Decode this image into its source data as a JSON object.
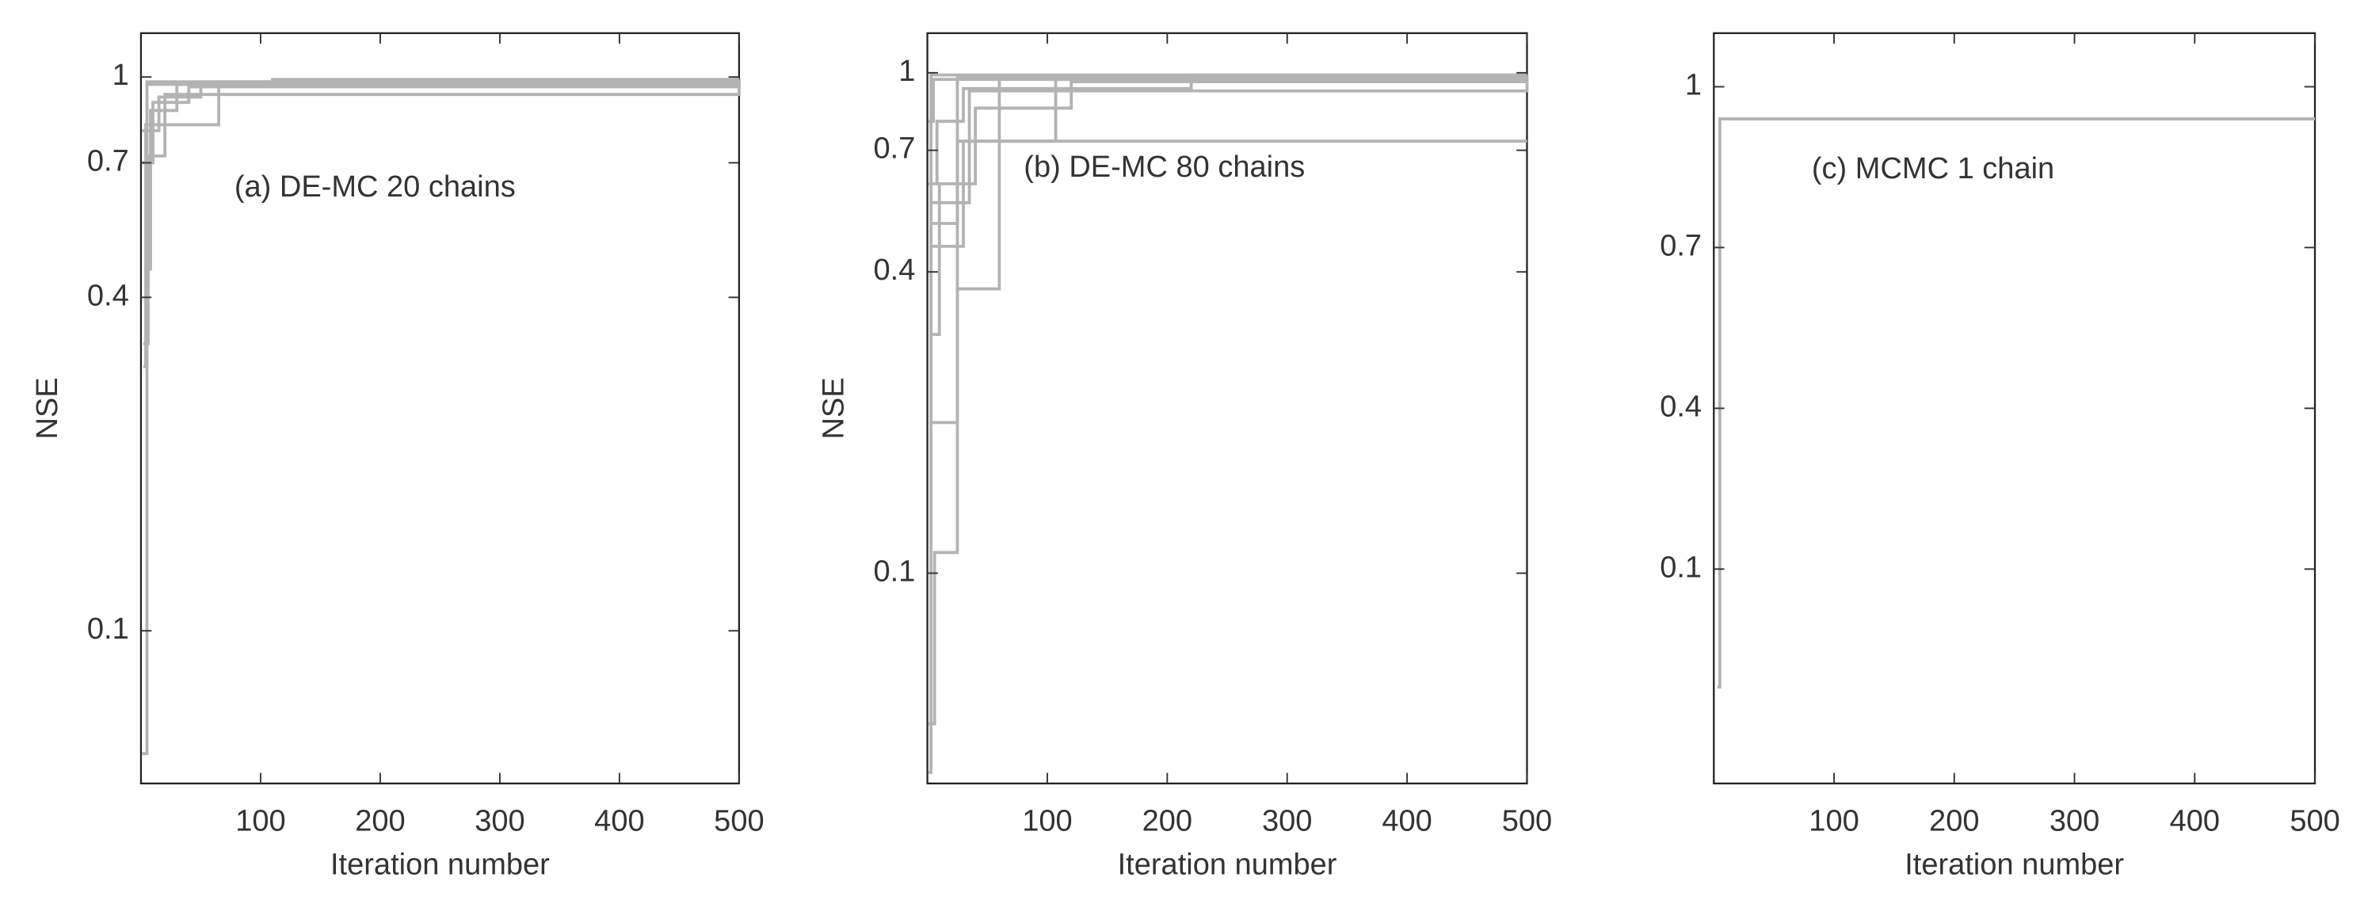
{
  "chart_data": [
    {
      "type": "line",
      "drawstyle": "steps-post",
      "annotation": "(a) DE-MC 20 chains",
      "xlabel": "Iteration number",
      "ylabel": "NSE",
      "xlim": [
        0,
        500
      ],
      "xticks": [
        100,
        200,
        300,
        400,
        500
      ],
      "yscale": "log",
      "ylim": [
        0.053,
        1.2
      ],
      "yticks": [
        0.1,
        0.4,
        0.7,
        1
      ],
      "series": [
        {
          "color": "#b3b3b3",
          "x": [
            1,
            5,
            110,
            500
          ],
          "values": [
            0.06,
            0.98,
            0.99,
            0.99
          ]
        },
        {
          "color": "#b3b3b3",
          "x": [
            2,
            4,
            65,
            500
          ],
          "values": [
            0.3,
            0.82,
            0.98,
            0.98
          ]
        },
        {
          "color": "#b3b3b3",
          "x": [
            3,
            8,
            30,
            500
          ],
          "values": [
            0.45,
            0.87,
            0.97,
            0.97
          ]
        },
        {
          "color": "#b3b3b3",
          "x": [
            2,
            6,
            20,
            500
          ],
          "values": [
            0.33,
            0.72,
            0.93,
            0.99
          ]
        },
        {
          "color": "#b3b3b3",
          "x": [
            1,
            10,
            40,
            500
          ],
          "values": [
            0.7,
            0.9,
            0.96,
            0.99
          ]
        },
        {
          "color": "#b3b3b3",
          "x": [
            1,
            15,
            50,
            500
          ],
          "values": [
            0.8,
            0.92,
            0.98,
            0.99
          ]
        },
        {
          "color": "#b3b3b3",
          "x": [
            4,
            500
          ],
          "values": [
            0.97,
            0.99
          ]
        }
      ]
    },
    {
      "type": "line",
      "drawstyle": "steps-post",
      "annotation": "(b) DE-MC 80 chains",
      "xlabel": "Iteration number",
      "ylabel": "NSE",
      "xlim": [
        0,
        500
      ],
      "xticks": [
        100,
        200,
        300,
        400,
        500
      ],
      "yscale": "log",
      "ylim": [
        0.038,
        1.2
      ],
      "yticks": [
        0.1,
        0.4,
        0.7,
        1
      ],
      "series": [
        {
          "color": "#b3b3b3",
          "x": [
            1,
            3,
            500
          ],
          "values": [
            0.04,
            0.99,
            0.99
          ]
        },
        {
          "color": "#b3b3b3",
          "x": [
            1,
            6,
            25,
            500
          ],
          "values": [
            0.05,
            0.11,
            0.98,
            0.98
          ]
        },
        {
          "color": "#b3b3b3",
          "x": [
            2,
            25,
            60,
            500
          ],
          "values": [
            0.2,
            0.37,
            0.98,
            0.98
          ]
        },
        {
          "color": "#b3b3b3",
          "x": [
            3,
            25,
            500
          ],
          "values": [
            0.5,
            0.73,
            0.73
          ]
        },
        {
          "color": "#b3b3b3",
          "x": [
            3,
            30,
            107,
            500
          ],
          "values": [
            0.45,
            0.73,
            0.97,
            0.97
          ]
        },
        {
          "color": "#b3b3b3",
          "x": [
            2,
            10,
            40,
            120,
            500
          ],
          "values": [
            0.3,
            0.6,
            0.85,
            0.96,
            0.96
          ]
        },
        {
          "color": "#b3b3b3",
          "x": [
            1,
            8,
            30,
            220,
            500
          ],
          "values": [
            0.6,
            0.8,
            0.93,
            0.99,
            0.99
          ]
        },
        {
          "color": "#b3b3b3",
          "x": [
            1,
            5,
            500
          ],
          "values": [
            0.8,
            0.97,
            0.97
          ]
        },
        {
          "color": "#b3b3b3",
          "x": [
            4,
            35,
            500
          ],
          "values": [
            0.55,
            0.92,
            0.99
          ]
        }
      ]
    },
    {
      "type": "line",
      "drawstyle": "steps-post",
      "annotation": "(c) MCMC 1 chain",
      "xlabel": "Iteration number",
      "xlim": [
        0,
        500
      ],
      "xticks": [
        100,
        200,
        300,
        400,
        500
      ],
      "yscale": "linear",
      "ylim": [
        -0.3,
        1.1
      ],
      "yticks": [
        0.1,
        0.4,
        0.7,
        1
      ],
      "series": [
        {
          "color": "#b3b3b3",
          "x": [
            3,
            5,
            500
          ],
          "values": [
            -0.12,
            0.94,
            0.94
          ]
        }
      ]
    }
  ]
}
